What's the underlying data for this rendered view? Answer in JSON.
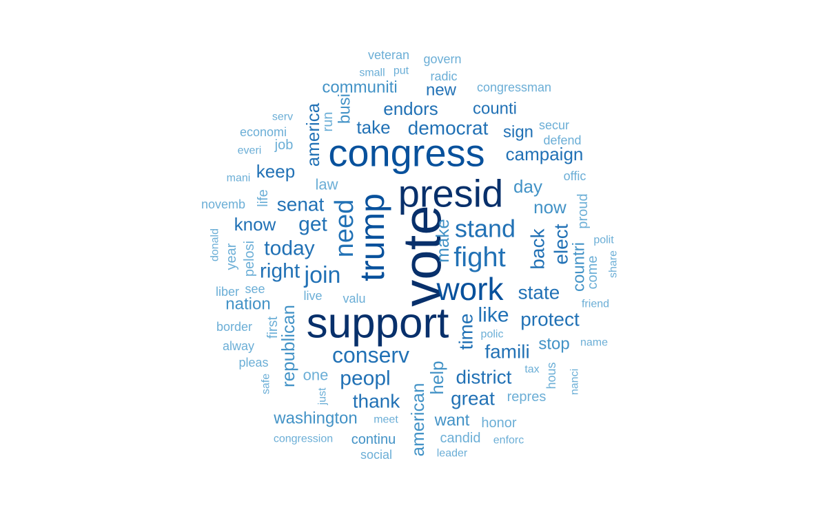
{
  "words": [
    {
      "text": "vote",
      "color": "#08306b"
    },
    {
      "text": "support",
      "color": "#08306b"
    },
    {
      "text": "presid",
      "color": "#08306b"
    },
    {
      "text": "congress",
      "color": "#08519c"
    },
    {
      "text": "trump",
      "color": "#08519c"
    },
    {
      "text": "work",
      "color": "#08519c"
    },
    {
      "text": "fight",
      "color": "#2171b5"
    },
    {
      "text": "need",
      "color": "#2171b5"
    },
    {
      "text": "stand",
      "color": "#2171b5"
    },
    {
      "text": "join",
      "color": "#2171b5"
    },
    {
      "text": "conserv",
      "color": "#2171b5"
    },
    {
      "text": "democrat",
      "color": "#2171b5"
    },
    {
      "text": "campaign",
      "color": "#2171b5"
    },
    {
      "text": "today",
      "color": "#2171b5"
    },
    {
      "text": "right",
      "color": "#2171b5"
    },
    {
      "text": "get",
      "color": "#2171b5"
    },
    {
      "text": "senat",
      "color": "#2171b5"
    },
    {
      "text": "peopl",
      "color": "#2171b5"
    },
    {
      "text": "district",
      "color": "#2171b5"
    },
    {
      "text": "great",
      "color": "#2171b5"
    },
    {
      "text": "protect",
      "color": "#2171b5"
    },
    {
      "text": "famili",
      "color": "#2171b5"
    },
    {
      "text": "state",
      "color": "#2171b5"
    },
    {
      "text": "endors",
      "color": "#2171b5"
    },
    {
      "text": "take",
      "color": "#2171b5"
    },
    {
      "text": "counti",
      "color": "#2171b5"
    },
    {
      "text": "sign",
      "color": "#2171b5"
    },
    {
      "text": "time",
      "color": "#2171b5"
    },
    {
      "text": "like",
      "color": "#2171b5"
    },
    {
      "text": "thank",
      "color": "#2171b5"
    },
    {
      "text": "keep",
      "color": "#2171b5"
    },
    {
      "text": "know",
      "color": "#2171b5"
    },
    {
      "text": "america",
      "color": "#2171b5"
    },
    {
      "text": "back",
      "color": "#2171b5"
    },
    {
      "text": "elect",
      "color": "#2171b5"
    },
    {
      "text": "communiti",
      "color": "#4292c6"
    },
    {
      "text": "new",
      "color": "#2171b5"
    },
    {
      "text": "busi",
      "color": "#4292c6"
    },
    {
      "text": "now",
      "color": "#4292c6"
    },
    {
      "text": "day",
      "color": "#4292c6"
    },
    {
      "text": "make",
      "color": "#4292c6"
    },
    {
      "text": "republican",
      "color": "#4292c6"
    },
    {
      "text": "american",
      "color": "#4292c6"
    },
    {
      "text": "help",
      "color": "#4292c6"
    },
    {
      "text": "nation",
      "color": "#4292c6"
    },
    {
      "text": "washington",
      "color": "#4292c6"
    },
    {
      "text": "want",
      "color": "#4292c6"
    },
    {
      "text": "stop",
      "color": "#4292c6"
    },
    {
      "text": "countri",
      "color": "#4292c6"
    },
    {
      "text": "proud",
      "color": "#6baed6"
    },
    {
      "text": "repres",
      "color": "#6baed6"
    },
    {
      "text": "continu",
      "color": "#4292c6"
    },
    {
      "text": "one",
      "color": "#6baed6"
    },
    {
      "text": "candid",
      "color": "#6baed6"
    },
    {
      "text": "honor",
      "color": "#6baed6"
    },
    {
      "text": "law",
      "color": "#6baed6"
    },
    {
      "text": "first",
      "color": "#6baed6"
    },
    {
      "text": "run",
      "color": "#6baed6"
    },
    {
      "text": "year",
      "color": "#6baed6"
    },
    {
      "text": "pelosi",
      "color": "#6baed6"
    },
    {
      "text": "life",
      "color": "#6baed6"
    },
    {
      "text": "job",
      "color": "#6baed6"
    },
    {
      "text": "come",
      "color": "#6baed6"
    },
    {
      "text": "valu",
      "color": "#6baed6"
    },
    {
      "text": "live",
      "color": "#6baed6"
    },
    {
      "text": "see",
      "color": "#6baed6"
    },
    {
      "text": "hous",
      "color": "#6baed6"
    },
    {
      "text": "economi",
      "color": "#6baed6"
    },
    {
      "text": "congressman",
      "color": "#6baed6"
    },
    {
      "text": "secur",
      "color": "#6baed6"
    },
    {
      "text": "defend",
      "color": "#6baed6"
    },
    {
      "text": "offic",
      "color": "#6baed6"
    },
    {
      "text": "polit",
      "color": "#6baed6"
    },
    {
      "text": "share",
      "color": "#6baed6"
    },
    {
      "text": "friend",
      "color": "#6baed6"
    },
    {
      "text": "name",
      "color": "#6baed6"
    },
    {
      "text": "polic",
      "color": "#6baed6"
    },
    {
      "text": "tax",
      "color": "#6baed6"
    },
    {
      "text": "nanci",
      "color": "#6baed6"
    },
    {
      "text": "enforc",
      "color": "#6baed6"
    },
    {
      "text": "leader",
      "color": "#6baed6"
    },
    {
      "text": "social",
      "color": "#6baed6"
    },
    {
      "text": "meet",
      "color": "#6baed6"
    },
    {
      "text": "congression",
      "color": "#6baed6"
    },
    {
      "text": "just",
      "color": "#6baed6"
    },
    {
      "text": "safe",
      "color": "#6baed6"
    },
    {
      "text": "pleas",
      "color": "#6baed6"
    },
    {
      "text": "alway",
      "color": "#6baed6"
    },
    {
      "text": "border",
      "color": "#6baed6"
    },
    {
      "text": "liber",
      "color": "#6baed6"
    },
    {
      "text": "donald",
      "color": "#6baed6"
    },
    {
      "text": "novemb",
      "color": "#6baed6"
    },
    {
      "text": "mani",
      "color": "#6baed6"
    },
    {
      "text": "everi",
      "color": "#6baed6"
    },
    {
      "text": "serv",
      "color": "#6baed6"
    },
    {
      "text": "veteran",
      "color": "#6baed6"
    },
    {
      "text": "small",
      "color": "#6baed6"
    },
    {
      "text": "put",
      "color": "#6baed6"
    },
    {
      "text": "govern",
      "color": "#6baed6"
    },
    {
      "text": "radic",
      "color": "#6baed6"
    }
  ]
}
